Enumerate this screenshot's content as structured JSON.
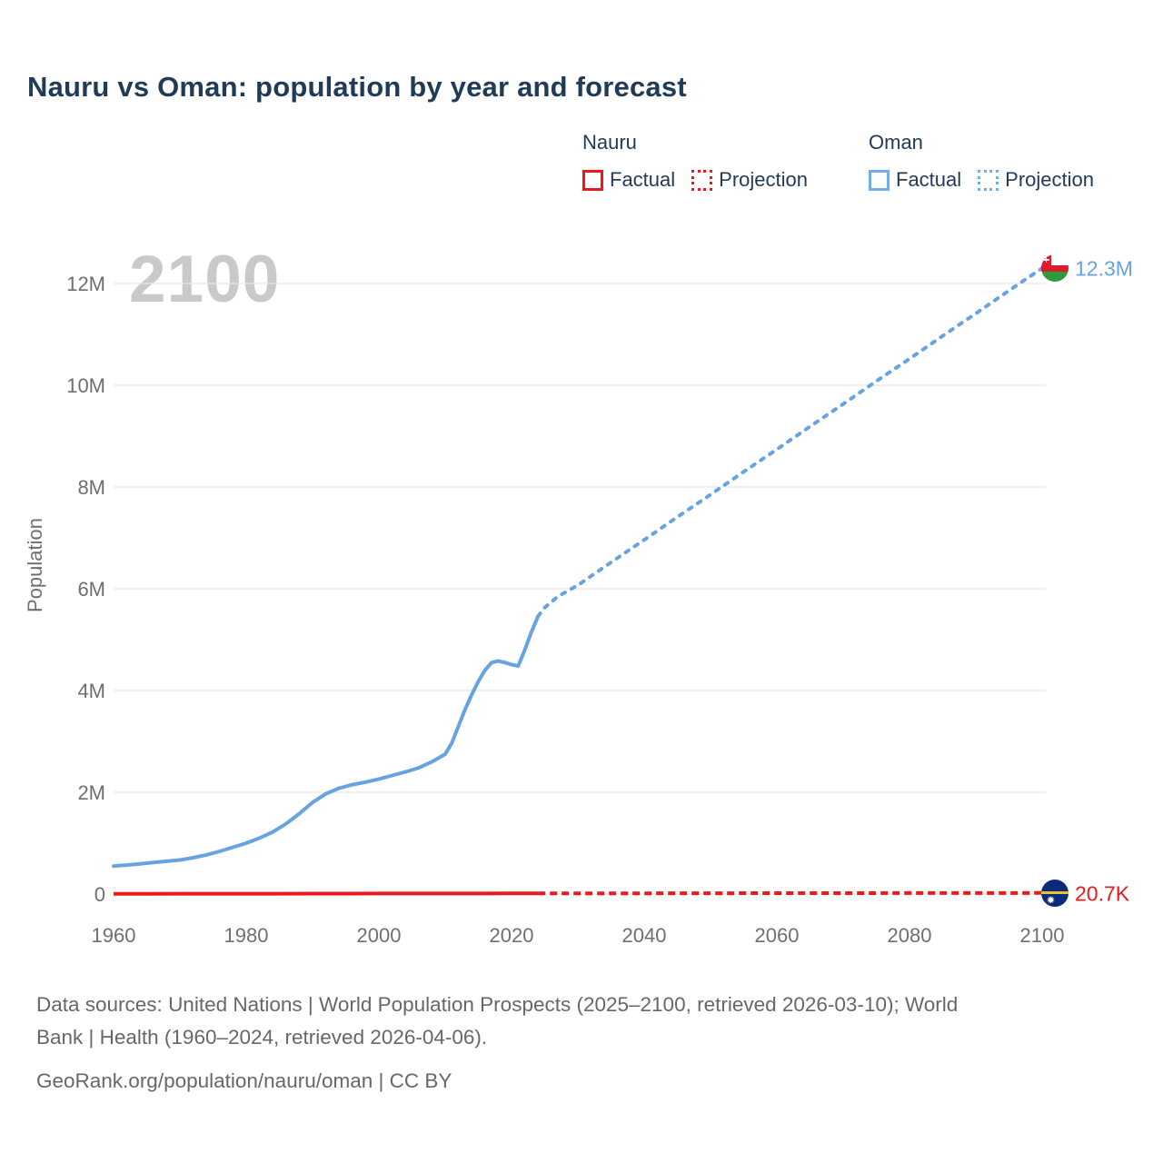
{
  "title": "Nauru vs Oman: population by year and forecast",
  "watermark": "2100",
  "legend": {
    "groups": [
      {
        "name": "Nauru",
        "color": "#ec181c",
        "items": [
          {
            "label": "Factual",
            "style": "solid"
          },
          {
            "label": "Projection",
            "style": "dotted"
          }
        ]
      },
      {
        "name": "Oman",
        "color": "#74aee8",
        "items": [
          {
            "label": "Factual",
            "style": "solid"
          },
          {
            "label": "Projection",
            "style": "dotted"
          }
        ]
      }
    ]
  },
  "chart_data": {
    "type": "line",
    "title": "Nauru vs Oman: population by year and forecast",
    "xlabel": "",
    "ylabel": "Population",
    "value_unit": "millions",
    "xlim": [
      1960,
      2100
    ],
    "ylim": [
      0,
      12.55
    ],
    "grid": "horizontal",
    "legend_position": "top-right",
    "x_ticks": [
      1960,
      1980,
      2000,
      2020,
      2040,
      2060,
      2080,
      2100
    ],
    "y_ticks": [
      {
        "label": "0",
        "value": 0
      },
      {
        "label": "2M",
        "value": 2
      },
      {
        "label": "4M",
        "value": 4
      },
      {
        "label": "6M",
        "value": 6
      },
      {
        "label": "8M",
        "value": 8
      },
      {
        "label": "10M",
        "value": 10
      },
      {
        "label": "12M",
        "value": 12
      }
    ],
    "series": [
      {
        "name": "Oman factual",
        "color": "#68a3e1",
        "style": "solid",
        "points": [
          [
            1960,
            0.55
          ],
          [
            1962,
            0.57
          ],
          [
            1964,
            0.595
          ],
          [
            1966,
            0.62
          ],
          [
            1968,
            0.645
          ],
          [
            1970,
            0.67
          ],
          [
            1972,
            0.715
          ],
          [
            1974,
            0.77
          ],
          [
            1976,
            0.84
          ],
          [
            1978,
            0.92
          ],
          [
            1980,
            1.0
          ],
          [
            1982,
            1.1
          ],
          [
            1984,
            1.22
          ],
          [
            1986,
            1.38
          ],
          [
            1988,
            1.58
          ],
          [
            1990,
            1.8
          ],
          [
            1992,
            1.97
          ],
          [
            1994,
            2.08
          ],
          [
            1996,
            2.15
          ],
          [
            1998,
            2.2
          ],
          [
            2000,
            2.26
          ],
          [
            2002,
            2.33
          ],
          [
            2004,
            2.4
          ],
          [
            2006,
            2.48
          ],
          [
            2008,
            2.6
          ],
          [
            2010,
            2.75
          ],
          [
            2011,
            2.97
          ],
          [
            2012,
            3.3
          ],
          [
            2013,
            3.63
          ],
          [
            2014,
            3.92
          ],
          [
            2015,
            4.18
          ],
          [
            2016,
            4.4
          ],
          [
            2017,
            4.55
          ],
          [
            2018,
            4.58
          ],
          [
            2019,
            4.55
          ],
          [
            2020,
            4.51
          ],
          [
            2021,
            4.48
          ],
          [
            2022,
            4.8
          ],
          [
            2023,
            5.15
          ],
          [
            2024,
            5.46
          ]
        ]
      },
      {
        "name": "Oman projection",
        "color": "#68a3e1",
        "style": "dashed",
        "end_label": "12.3M",
        "end_flag": "oman-flag",
        "points": [
          [
            2024,
            5.46
          ],
          [
            2025,
            5.63
          ],
          [
            2027,
            5.85
          ],
          [
            2030,
            6.07
          ],
          [
            2035,
            6.52
          ],
          [
            2040,
            6.96
          ],
          [
            2045,
            7.41
          ],
          [
            2050,
            7.85
          ],
          [
            2055,
            8.3
          ],
          [
            2060,
            8.74
          ],
          [
            2065,
            9.19
          ],
          [
            2070,
            9.63
          ],
          [
            2075,
            10.08
          ],
          [
            2080,
            10.52
          ],
          [
            2085,
            10.97
          ],
          [
            2090,
            11.41
          ],
          [
            2095,
            11.86
          ],
          [
            2100,
            12.3
          ]
        ]
      },
      {
        "name": "Nauru factual",
        "color": "#ec181c",
        "style": "solid",
        "points": [
          [
            1960,
            0.0046
          ],
          [
            1965,
            0.0058
          ],
          [
            1970,
            0.0066
          ],
          [
            1975,
            0.007
          ],
          [
            1980,
            0.0075
          ],
          [
            1985,
            0.008
          ],
          [
            1990,
            0.0089
          ],
          [
            1995,
            0.0096
          ],
          [
            2000,
            0.0101
          ],
          [
            2005,
            0.01
          ],
          [
            2010,
            0.01
          ],
          [
            2015,
            0.0108
          ],
          [
            2020,
            0.0118
          ],
          [
            2024,
            0.0125
          ]
        ]
      },
      {
        "name": "Nauru projection",
        "color": "#ec181c",
        "style": "dashed",
        "end_label": "20.7K",
        "end_flag": "nauru-flag",
        "points": [
          [
            2024,
            0.0125
          ],
          [
            2030,
            0.0135
          ],
          [
            2040,
            0.0147
          ],
          [
            2050,
            0.0158
          ],
          [
            2060,
            0.0171
          ],
          [
            2070,
            0.0182
          ],
          [
            2080,
            0.0192
          ],
          [
            2090,
            0.02
          ],
          [
            2100,
            0.0207
          ]
        ]
      }
    ]
  },
  "footer": {
    "sources_line1": "Data sources: United Nations | World Population Prospects (2025–2100, retrieved 2026-03-10); World",
    "sources_line2": "Bank | Health (1960–2024, retrieved 2026-04-06).",
    "link_line": "GeoRank.org/population/nauru/oman | CC BY"
  }
}
